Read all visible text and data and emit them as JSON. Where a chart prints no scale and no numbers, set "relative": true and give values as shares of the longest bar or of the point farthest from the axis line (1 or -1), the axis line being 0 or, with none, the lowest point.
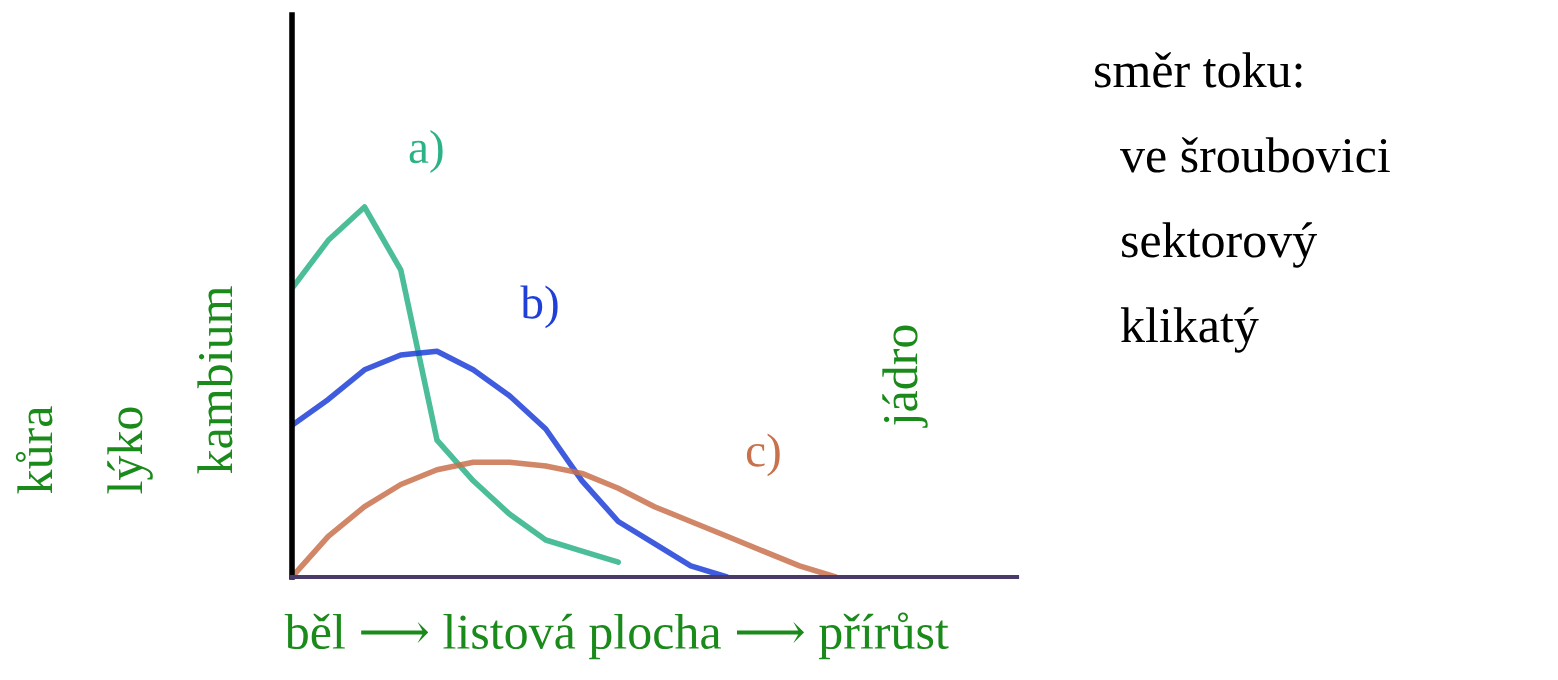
{
  "chart_data": {
    "type": "line",
    "relative": true,
    "categories": [
      null,
      null,
      null,
      null,
      null,
      null,
      null,
      null,
      null,
      null,
      null,
      null,
      null,
      null,
      null,
      null,
      null,
      null,
      null,
      null,
      null
    ],
    "series": [
      {
        "name": "a)",
        "color": "#2bb387",
        "values": [
          0.78,
          0.91,
          1.0,
          0.83,
          0.37,
          0.26,
          0.17,
          0.1,
          0.07,
          0.04,
          null,
          null,
          null,
          null,
          null,
          null,
          null,
          null,
          null,
          null,
          null
        ]
      },
      {
        "name": "b)",
        "color": "#1f3fd8",
        "values": [
          0.41,
          0.48,
          0.56,
          0.6,
          0.61,
          0.56,
          0.49,
          0.4,
          0.26,
          0.15,
          0.09,
          0.03,
          0.0,
          null,
          null,
          null,
          null,
          null,
          null,
          null,
          null
        ]
      },
      {
        "name": "c)",
        "color": "#c8714c",
        "values": [
          0.0,
          0.11,
          0.19,
          0.25,
          0.29,
          0.31,
          0.31,
          0.3,
          0.28,
          0.24,
          0.19,
          0.15,
          0.11,
          0.07,
          0.03,
          0.0,
          null,
          null,
          null,
          null,
          null
        ]
      }
    ],
    "xlabel": "běl ⟶ listová plocha ⟶ přírůst",
    "annotations": [
      "kůra",
      "lýko",
      "kambium",
      "jádro",
      "směr toku:",
      "ve šroubovici",
      "sektorový",
      "klikatý"
    ],
    "legend": false,
    "marker": "none",
    "line_style": "solid",
    "grid": false
  }
}
